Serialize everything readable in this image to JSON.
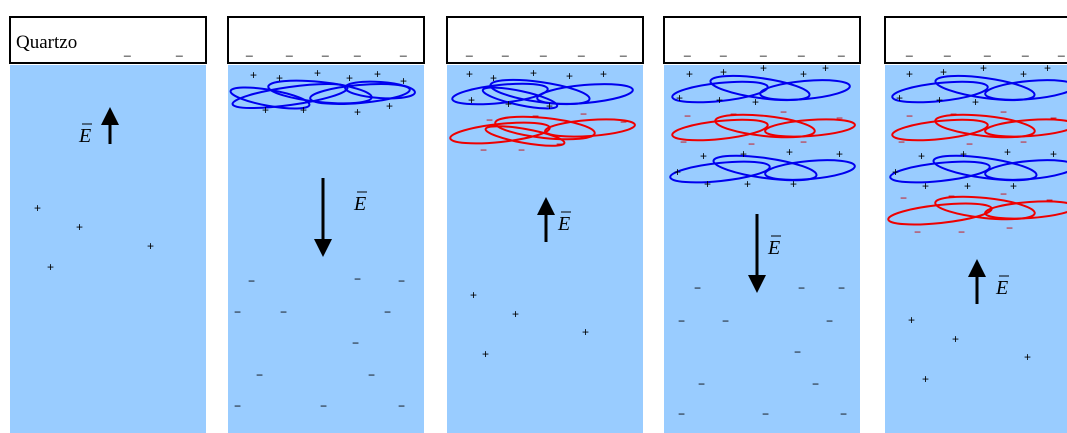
{
  "panel_label": "Quartzo",
  "field_label": "E",
  "colors": {
    "medium": "#99ccff",
    "positive_layer": "#0000ee",
    "negative_layer": "#ee0000",
    "outline": "#000000"
  },
  "panels": [
    {
      "field_direction": "up",
      "free_charges": "+",
      "layers": []
    },
    {
      "field_direction": "down",
      "free_charges": "-",
      "layers": [
        "positive"
      ]
    },
    {
      "field_direction": "up",
      "free_charges": "+",
      "layers": [
        "positive",
        "negative"
      ]
    },
    {
      "field_direction": "down",
      "free_charges": "-",
      "layers": [
        "positive",
        "negative",
        "positive"
      ]
    },
    {
      "field_direction": "up",
      "free_charges": "+",
      "layers": [
        "positive",
        "negative",
        "positive",
        "negative"
      ]
    }
  ]
}
